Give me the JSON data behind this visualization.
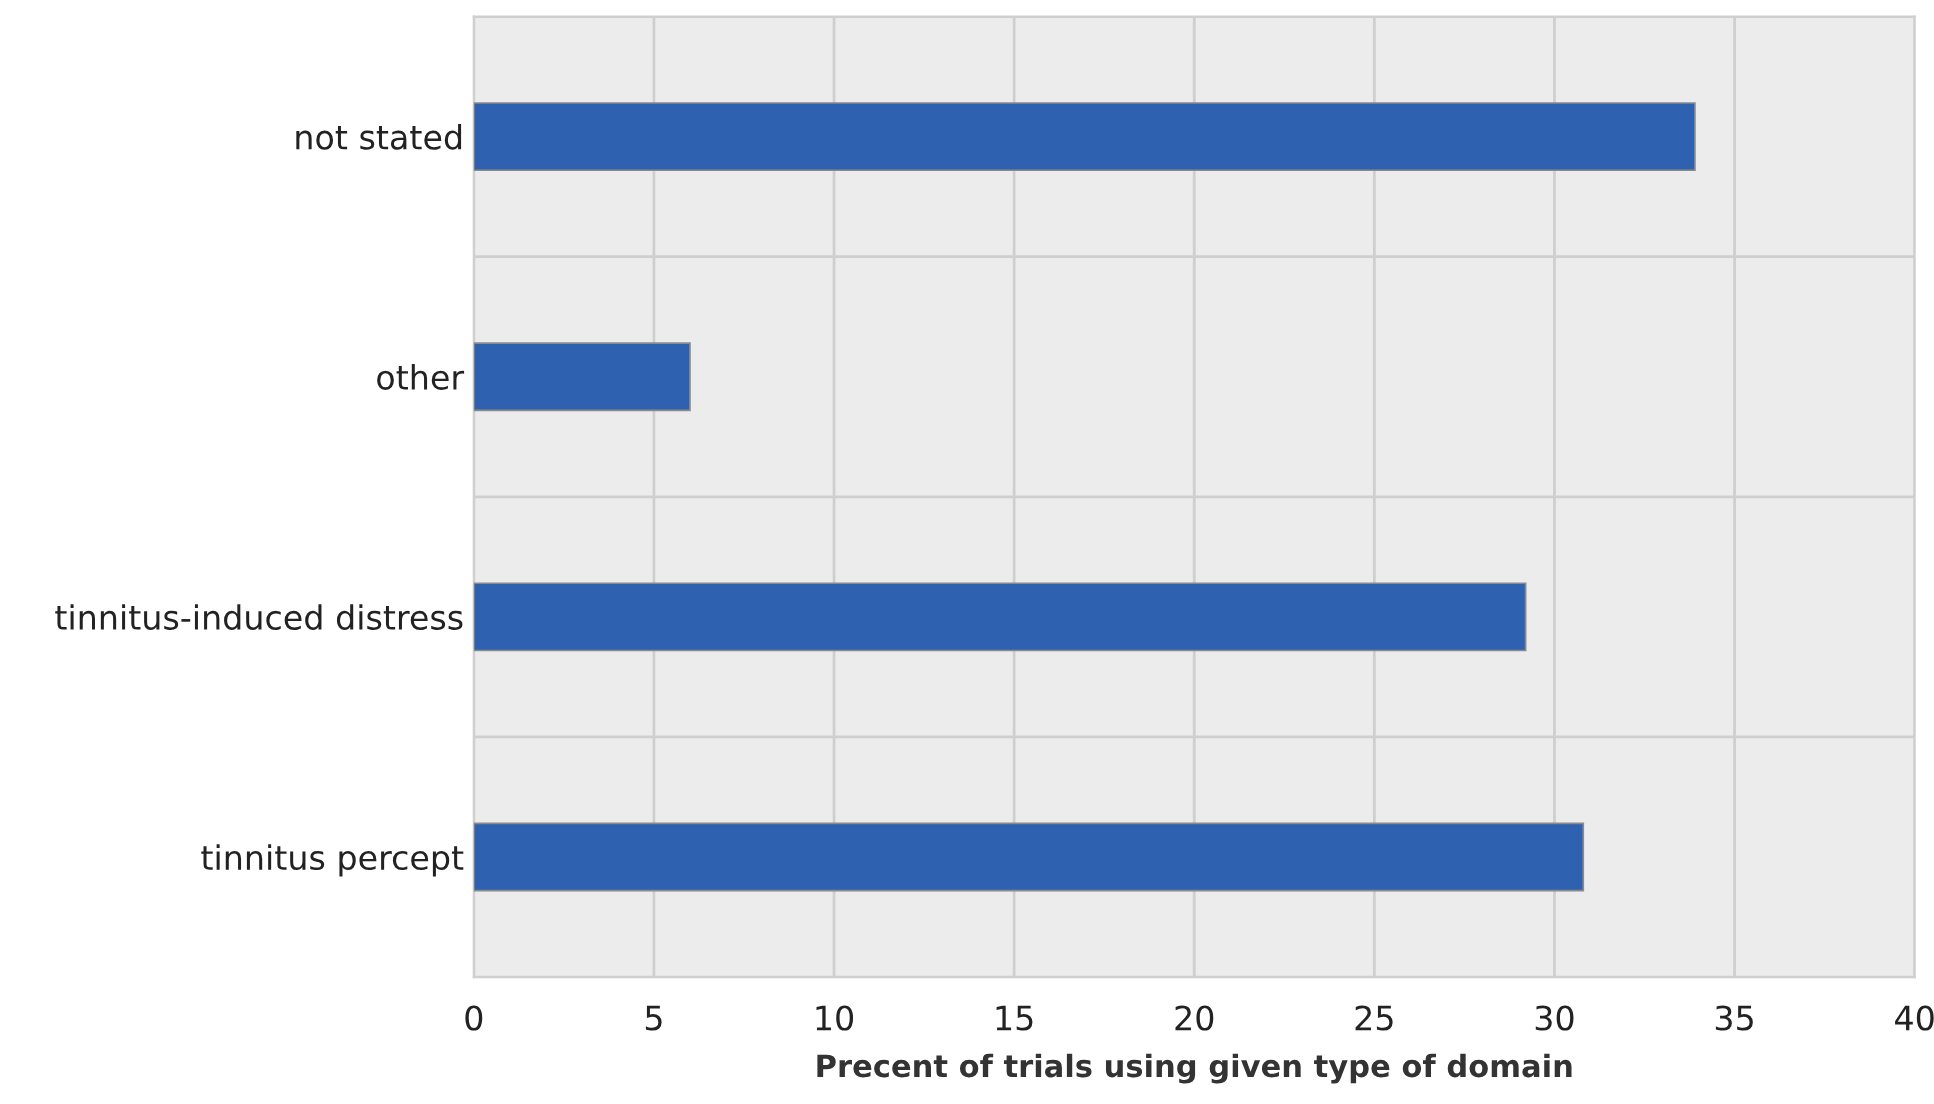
{
  "chart_data": {
    "type": "bar",
    "orientation": "horizontal",
    "xlabel": "Precent of trials using given type of domain",
    "categories": [
      "not stated",
      "other",
      "tinnitus-induced distress",
      "tinnitus percept"
    ],
    "values": [
      33.9,
      6.0,
      29.2,
      30.8
    ],
    "color": "#2e62b0",
    "xlim": [
      0,
      40
    ],
    "xticks": [
      0,
      5,
      10,
      15,
      20,
      25,
      30,
      35,
      40
    ],
    "grid": true
  }
}
